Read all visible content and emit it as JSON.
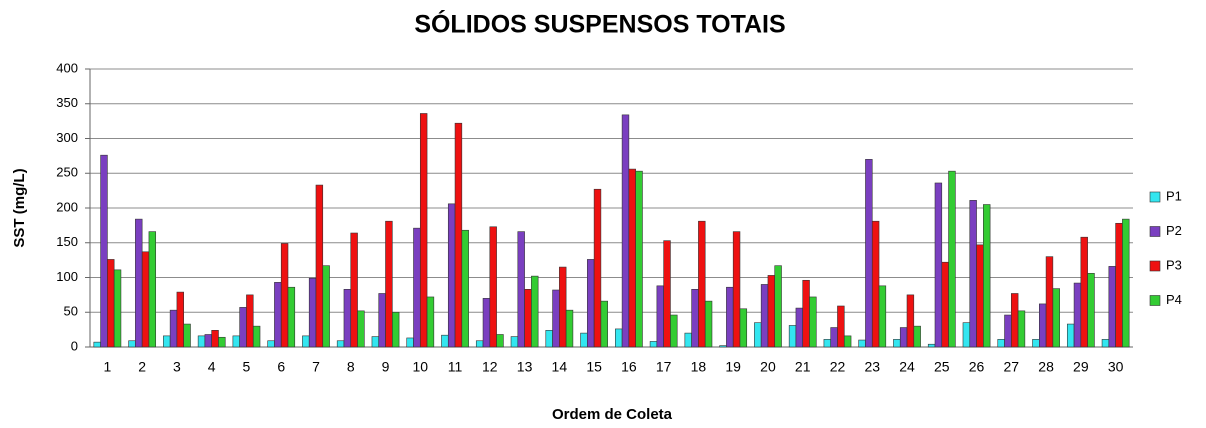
{
  "chart_data": {
    "type": "bar",
    "title": "SÓLIDOS SUSPENSOS TOTAIS",
    "x_label": "Ordem de Coleta",
    "y_label": "SST (mg/L)",
    "categories": [
      "1",
      "2",
      "3",
      "4",
      "5",
      "6",
      "7",
      "8",
      "9",
      "10",
      "11",
      "12",
      "13",
      "14",
      "15",
      "16",
      "17",
      "18",
      "19",
      "20",
      "21",
      "22",
      "23",
      "24",
      "25",
      "26",
      "27",
      "28",
      "29",
      "30"
    ],
    "series": [
      {
        "name": "P1",
        "color": "#33e6f0",
        "values": [
          7,
          9,
          16,
          16,
          16,
          9,
          16,
          9,
          15,
          13,
          17,
          9,
          15,
          24,
          20,
          26,
          8,
          20,
          2,
          35,
          31,
          11,
          10,
          11,
          4,
          35,
          11,
          11,
          33,
          11
        ]
      },
      {
        "name": "P2",
        "color": "#7a3fc0",
        "values": [
          276,
          184,
          53,
          18,
          57,
          93,
          99,
          83,
          77,
          171,
          206,
          70,
          166,
          82,
          126,
          334,
          88,
          83,
          86,
          90,
          56,
          28,
          270,
          28,
          236,
          211,
          46,
          62,
          92,
          116
        ]
      },
      {
        "name": "P3",
        "color": "#ee1111",
        "values": [
          126,
          137,
          79,
          24,
          75,
          149,
          233,
          164,
          181,
          336,
          322,
          173,
          83,
          115,
          227,
          256,
          153,
          181,
          166,
          103,
          96,
          59,
          181,
          75,
          122,
          147,
          77,
          130,
          158,
          178
        ]
      },
      {
        "name": "P4",
        "color": "#33cc33",
        "values": [
          111,
          166,
          33,
          14,
          30,
          86,
          117,
          52,
          50,
          72,
          168,
          18,
          102,
          53,
          66,
          253,
          46,
          66,
          55,
          117,
          72,
          16,
          88,
          30,
          253,
          205,
          52,
          84,
          106,
          184
        ]
      }
    ],
    "ylim": [
      0,
      400
    ],
    "yticks": [
      0,
      50,
      100,
      150,
      200,
      250,
      300,
      350,
      400
    ],
    "grid": true,
    "legend": "right"
  }
}
